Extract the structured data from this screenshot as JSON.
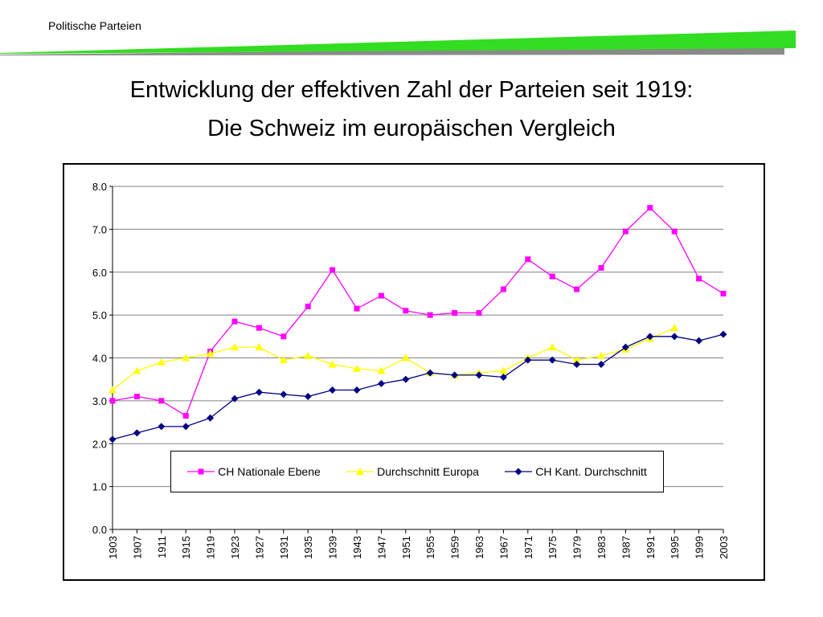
{
  "header": {
    "label": "Politische Parteien"
  },
  "title": {
    "line1": "Entwicklung der effektiven Zahl der Parteien seit 1919:",
    "line2": "Die Schweiz im europäischen Vergleich"
  },
  "colors": {
    "accent_green": "#33dd22",
    "accent_grey": "#8a8a8a"
  },
  "chart_data": {
    "type": "line",
    "x": [
      "1903",
      "1907",
      "1911",
      "1915",
      "1919",
      "1923",
      "1927",
      "1931",
      "1935",
      "1939",
      "1943",
      "1947",
      "1951",
      "1955",
      "1959",
      "1963",
      "1967",
      "1971",
      "1975",
      "1979",
      "1983",
      "1987",
      "1991",
      "1995",
      "1999",
      "2003"
    ],
    "ylim": [
      0,
      8
    ],
    "yticks": [
      "0.0",
      "1.0",
      "2.0",
      "3.0",
      "4.0",
      "5.0",
      "6.0",
      "7.0",
      "8.0"
    ],
    "grid": "horizontal",
    "legend": "inside-bottom-center",
    "series": [
      {
        "name": "CH Nationale Ebene",
        "color": "#ff00ff",
        "marker": "square",
        "values": [
          3.0,
          3.1,
          3.0,
          2.65,
          4.15,
          4.85,
          4.7,
          4.5,
          5.2,
          6.05,
          5.15,
          5.45,
          5.1,
          5.0,
          5.05,
          5.05,
          5.6,
          6.3,
          5.9,
          5.6,
          6.1,
          6.95,
          7.5,
          6.95,
          5.85,
          5.5
        ]
      },
      {
        "name": "Durchschnitt Europa",
        "color": "#ffff00",
        "marker": "triangle",
        "values": [
          3.25,
          3.7,
          3.9,
          4.0,
          4.1,
          4.25,
          4.25,
          3.95,
          4.05,
          3.85,
          3.75,
          3.7,
          4.0,
          3.65,
          3.6,
          3.65,
          3.7,
          4.0,
          4.25,
          3.95,
          4.05,
          4.2,
          4.45,
          4.7,
          null,
          null
        ]
      },
      {
        "name": "CH Kant. Durchschnitt",
        "color": "#000080",
        "marker": "diamond",
        "values": [
          2.1,
          2.25,
          2.4,
          2.4,
          2.6,
          3.05,
          3.2,
          3.15,
          3.1,
          3.25,
          3.25,
          3.4,
          3.5,
          3.65,
          3.6,
          3.6,
          3.55,
          3.95,
          3.95,
          3.85,
          3.85,
          4.25,
          4.5,
          4.5,
          4.4,
          4.55
        ]
      }
    ]
  }
}
